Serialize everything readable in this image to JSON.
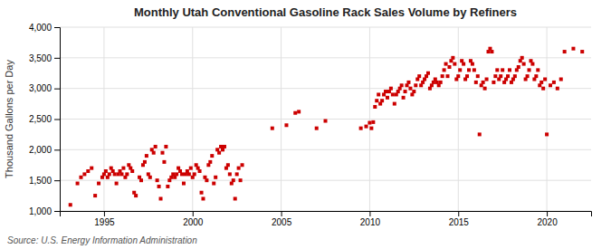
{
  "chart_data": {
    "type": "scatter",
    "title": "Monthly Utah Conventional Gasoline Rack Sales Volume by Refiners",
    "ylabel": "Thousand Gallons per Day",
    "source": "Source: U.S. Energy Information Administration",
    "color": "#cc0000",
    "marker": "square",
    "grid": true,
    "xlim": [
      1992.5,
      2022.5
    ],
    "xticks": [
      1995,
      2000,
      2005,
      2010,
      2015,
      2020
    ],
    "ylim": [
      1000,
      4000
    ],
    "yticks": [
      {
        "value": 1000,
        "label": "1,000"
      },
      {
        "value": 1500,
        "label": "1,500"
      },
      {
        "value": 2000,
        "label": "2,000"
      },
      {
        "value": 2500,
        "label": "2,500"
      },
      {
        "value": 3000,
        "label": "3,000"
      },
      {
        "value": 3500,
        "label": "3,500"
      },
      {
        "value": 4000,
        "label": "4,000"
      }
    ],
    "x": [
      1993.1,
      1993.5,
      1993.7,
      1993.9,
      1994.1,
      1994.3,
      1994.5,
      1994.7,
      1994.9,
      1995.0,
      1995.1,
      1995.2,
      1995.3,
      1995.4,
      1995.5,
      1995.6,
      1995.7,
      1995.8,
      1995.9,
      1996.0,
      1996.1,
      1996.2,
      1996.3,
      1996.4,
      1996.5,
      1996.6,
      1996.7,
      1996.8,
      1997.0,
      1997.1,
      1997.2,
      1997.3,
      1997.4,
      1997.5,
      1997.6,
      1997.7,
      1997.8,
      1997.9,
      1998.0,
      1998.1,
      1998.2,
      1998.3,
      1998.4,
      1998.5,
      1998.6,
      1998.7,
      1998.8,
      1998.9,
      1999.0,
      1999.1,
      1999.2,
      1999.3,
      1999.4,
      1999.5,
      1999.6,
      1999.7,
      1999.8,
      1999.9,
      2000.0,
      2000.1,
      2000.2,
      2000.3,
      2000.4,
      2000.5,
      2000.6,
      2000.7,
      2000.8,
      2000.9,
      2001.0,
      2001.1,
      2001.2,
      2001.3,
      2001.4,
      2001.5,
      2001.6,
      2001.7,
      2001.8,
      2001.9,
      2002.0,
      2002.1,
      2002.2,
      2002.3,
      2002.4,
      2002.5,
      2002.6,
      2002.7,
      2002.8,
      2004.5,
      2005.3,
      2005.8,
      2006.0,
      2007.0,
      2007.5,
      2009.5,
      2009.8,
      2010.0,
      2010.1,
      2010.2,
      2010.3,
      2010.4,
      2010.5,
      2010.6,
      2010.7,
      2010.8,
      2010.9,
      2011.0,
      2011.1,
      2011.2,
      2011.3,
      2011.4,
      2011.5,
      2011.6,
      2011.7,
      2011.8,
      2011.9,
      2012.0,
      2012.1,
      2012.2,
      2012.3,
      2012.4,
      2012.5,
      2012.6,
      2012.7,
      2012.8,
      2012.9,
      2013.0,
      2013.1,
      2013.2,
      2013.3,
      2013.4,
      2013.5,
      2013.6,
      2013.7,
      2013.8,
      2013.9,
      2014.0,
      2014.1,
      2014.2,
      2014.3,
      2014.4,
      2014.5,
      2014.6,
      2014.7,
      2014.8,
      2014.9,
      2015.0,
      2015.1,
      2015.2,
      2015.3,
      2015.4,
      2015.5,
      2015.6,
      2015.7,
      2015.8,
      2015.9,
      2016.0,
      2016.1,
      2016.2,
      2016.3,
      2016.4,
      2016.5,
      2016.6,
      2016.7,
      2016.8,
      2016.9,
      2017.0,
      2017.1,
      2017.2,
      2017.3,
      2017.4,
      2017.5,
      2017.6,
      2017.7,
      2017.8,
      2017.9,
      2018.0,
      2018.1,
      2018.2,
      2018.3,
      2018.4,
      2018.5,
      2018.6,
      2018.7,
      2018.8,
      2018.9,
      2019.0,
      2019.1,
      2019.2,
      2019.3,
      2019.4,
      2019.5,
      2019.6,
      2019.7,
      2019.8,
      2019.9,
      2020.0,
      2020.2,
      2020.4,
      2020.6,
      2020.8,
      2021.0,
      2021.5,
      2022.0
    ],
    "values": [
      1100,
      1450,
      1550,
      1600,
      1650,
      1700,
      1250,
      1450,
      1550,
      1600,
      1650,
      1550,
      1600,
      1700,
      1650,
      1600,
      1450,
      1600,
      1650,
      1600,
      1700,
      1550,
      1600,
      1750,
      1700,
      1650,
      1300,
      1250,
      1550,
      1500,
      1750,
      1800,
      1900,
      1600,
      1550,
      2000,
      1950,
      2050,
      1500,
      1400,
      1200,
      1950,
      1800,
      2050,
      1400,
      1500,
      1550,
      1600,
      1550,
      1600,
      1700,
      1650,
      1600,
      1450,
      1600,
      1650,
      1600,
      1700,
      1550,
      1600,
      1750,
      1700,
      1650,
      1300,
      1200,
      1550,
      1500,
      1750,
      1800,
      1900,
      1450,
      1550,
      2000,
      1950,
      2050,
      2000,
      2050,
      1700,
      1750,
      1600,
      1450,
      1500,
      1200,
      1600,
      1700,
      1500,
      1750,
      2350,
      2400,
      2600,
      2620,
      2350,
      2470,
      2350,
      2380,
      2440,
      2350,
      2450,
      2700,
      2800,
      2900,
      2750,
      2800,
      2900,
      2950,
      2850,
      2950,
      3000,
      2900,
      2750,
      2900,
      2950,
      3000,
      3050,
      2850,
      2950,
      3050,
      3100,
      3000,
      2900,
      2950,
      3050,
      3150,
      3200,
      3050,
      3100,
      3150,
      3200,
      3250,
      3000,
      3050,
      3100,
      3150,
      3100,
      3050,
      3100,
      3200,
      3300,
      3400,
      3200,
      3350,
      3450,
      3500,
      3400,
      3150,
      3200,
      3300,
      3450,
      3400,
      3150,
      3200,
      3300,
      3450,
      3400,
      3300,
      3100,
      3200,
      2250,
      3050,
      3100,
      3000,
      3150,
      3600,
      3650,
      3600,
      3100,
      3200,
      3300,
      3150,
      3200,
      3300,
      3100,
      3150,
      3200,
      3300,
      3100,
      3150,
      3200,
      3300,
      3350,
      3450,
      3500,
      3400,
      3150,
      3200,
      3300,
      3450,
      3400,
      3150,
      3200,
      3300,
      3050,
      3100,
      3000,
      3150,
      2250,
      3050,
      3100,
      3000,
      3150,
      3600,
      3650,
      3600
    ]
  }
}
